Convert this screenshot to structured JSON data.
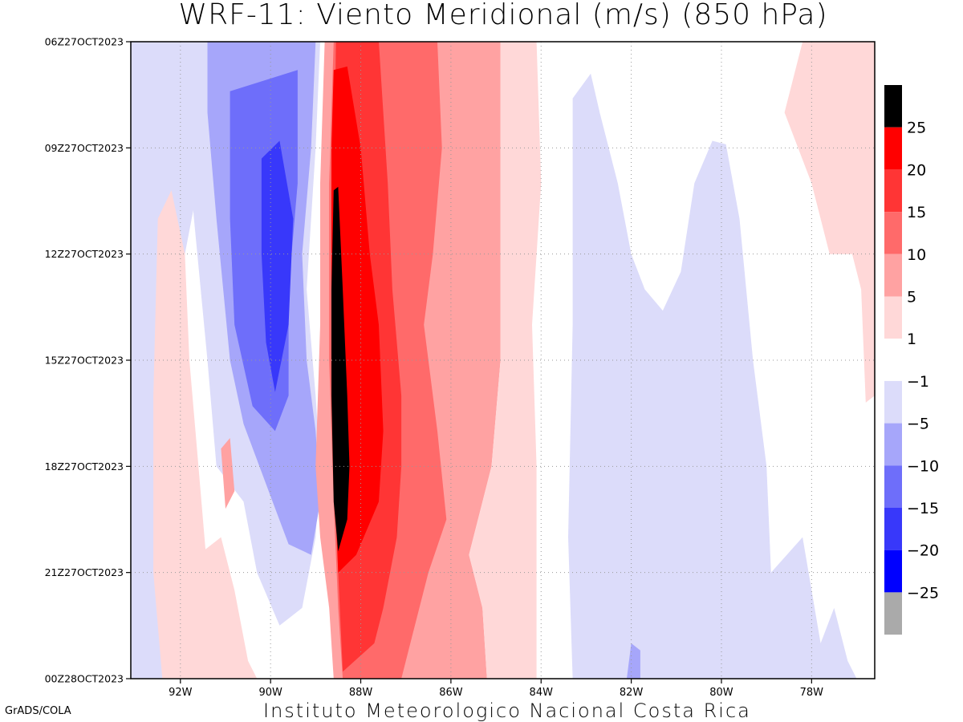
{
  "page": {
    "title": "WRF-11: Viento Meridional (m/s) (850 hPa)",
    "footer_left": "GrADS/COLA",
    "footer_center": "Instituto Meteorologico Nacional Costa Rica"
  },
  "chart_data": {
    "type": "heatmap",
    "title": "WRF-11: Viento Meridional (m/s) (850 hPa)",
    "xlabel": "",
    "ylabel": "",
    "x_ticks": [
      "92W",
      "90W",
      "88W",
      "86W",
      "84W",
      "82W",
      "80W",
      "78W"
    ],
    "x_tick_values": [
      -92,
      -90,
      -88,
      -86,
      -84,
      -82,
      -80,
      -78
    ],
    "xlim": [
      -93.1,
      -76.6
    ],
    "y_ticks": [
      "06Z27OCT2023",
      "09Z27OCT2023",
      "12Z27OCT2023",
      "15Z27OCT2023",
      "18Z27OCT2023",
      "21Z27OCT2023",
      "00Z28OCT2023"
    ],
    "y_tick_hours": [
      0,
      3,
      6,
      9,
      12,
      15,
      18
    ],
    "ylim_hours": [
      0,
      18
    ],
    "y_direction": "top-to-bottom",
    "grid": true,
    "colorbar": {
      "placement": "right",
      "levels": [
        {
          "range": [
            25,
            30
          ],
          "color": "#000000"
        },
        {
          "range": [
            20,
            25
          ],
          "color": "#ff0000"
        },
        {
          "range": [
            15,
            20
          ],
          "color": "#ff3535"
        },
        {
          "range": [
            10,
            15
          ],
          "color": "#ff6a6a"
        },
        {
          "range": [
            5,
            10
          ],
          "color": "#ffa2a2"
        },
        {
          "range": [
            1,
            5
          ],
          "color": "#ffd8d8"
        },
        {
          "range": [
            -1,
            1
          ],
          "color": "#ffffff"
        },
        {
          "range": [
            -5,
            -1
          ],
          "color": "#dcdcfa"
        },
        {
          "range": [
            -10,
            -5
          ],
          "color": "#a6a6fa"
        },
        {
          "range": [
            -15,
            -10
          ],
          "color": "#6e6efa"
        },
        {
          "range": [
            -20,
            -15
          ],
          "color": "#3838fa"
        },
        {
          "range": [
            -25,
            -20
          ],
          "color": "#0000ff"
        },
        {
          "range": [
            -30,
            -25
          ],
          "color": "#aaaaaa"
        }
      ],
      "labels": [
        "25",
        "20",
        "15",
        "10",
        "5",
        "1",
        "-1",
        "-5",
        "-10",
        "-15",
        "-20",
        "-25"
      ],
      "label_values": [
        25,
        20,
        15,
        10,
        5,
        1,
        -1,
        -5,
        -10,
        -15,
        -20,
        -25
      ]
    },
    "field_regions": [
      {
        "level": -5,
        "lon": [
          -93.1,
          -91.2
        ],
        "hours": [
          0,
          18
        ],
        "desc": "weak northerly west edge"
      },
      {
        "level": -10,
        "lon": [
          -91.5,
          -88.9
        ],
        "hours": [
          0,
          17
        ]
      },
      {
        "level": -15,
        "lon": [
          -90.9,
          -89.3
        ],
        "hours": [
          1.5,
          11
        ]
      },
      {
        "level": -20,
        "lon": [
          -90.0,
          -89.4
        ],
        "hours": [
          3,
          10
        ]
      },
      {
        "level": 1,
        "lon": [
          -92.2,
          -90.3
        ],
        "hours": [
          4,
          18
        ]
      },
      {
        "level": 5,
        "lon": [
          -88.8,
          -84.9
        ],
        "hours": [
          0,
          18
        ]
      },
      {
        "level": 10,
        "lon": [
          -88.8,
          -86.3
        ],
        "hours": [
          0,
          18
        ]
      },
      {
        "level": 15,
        "lon": [
          -88.7,
          -87.1
        ],
        "hours": [
          0,
          18
        ]
      },
      {
        "level": 20,
        "lon": [
          -88.7,
          -87.6
        ],
        "hours": [
          0.8,
          15
        ]
      },
      {
        "level": 25,
        "lon": [
          -88.7,
          -88.3
        ],
        "hours": [
          4.2,
          14.5
        ]
      },
      {
        "level": 1,
        "lon": [
          -86.2,
          -84.1
        ],
        "hours": [
          0,
          18
        ]
      },
      {
        "level": -1,
        "lon": [
          -83.3,
          -79.6
        ],
        "hours": [
          0.7,
          18
        ]
      },
      {
        "level": 1,
        "lon": [
          -79.0,
          -76.6
        ],
        "hours": [
          0,
          18
        ]
      }
    ]
  }
}
